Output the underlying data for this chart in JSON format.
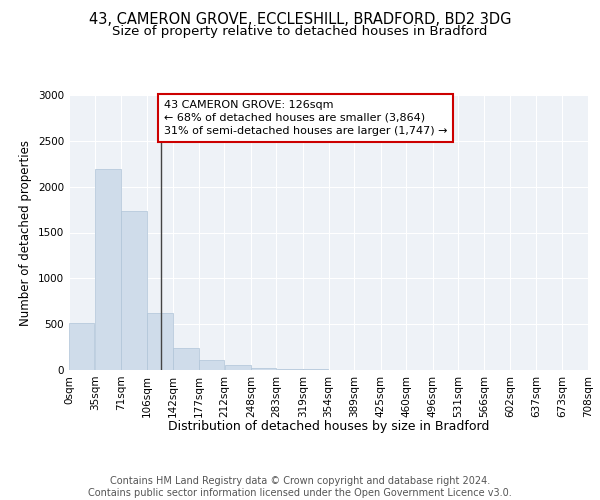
{
  "title1": "43, CAMERON GROVE, ECCLESHILL, BRADFORD, BD2 3DG",
  "title2": "Size of property relative to detached houses in Bradford",
  "xlabel": "Distribution of detached houses by size in Bradford",
  "ylabel": "Number of detached properties",
  "bin_edges": [
    0,
    35,
    71,
    106,
    142,
    177,
    212,
    248,
    283,
    319,
    354,
    389,
    425,
    460,
    496,
    531,
    566,
    602,
    637,
    673,
    708
  ],
  "bar_heights": [
    510,
    2190,
    1730,
    620,
    240,
    110,
    55,
    25,
    15,
    8,
    5,
    3,
    2,
    1,
    0,
    0,
    0,
    0,
    0,
    0
  ],
  "bar_color": "#cfdcea",
  "bar_edge_color": "#b0c4d8",
  "property_size": 126,
  "property_line_color": "#444444",
  "annotation_line1": "43 CAMERON GROVE: 126sqm",
  "annotation_line2": "← 68% of detached houses are smaller (3,864)",
  "annotation_line3": "31% of semi-detached houses are larger (1,747) →",
  "annotation_box_color": "#cc0000",
  "ylim": [
    0,
    3000
  ],
  "yticks": [
    0,
    500,
    1000,
    1500,
    2000,
    2500,
    3000
  ],
  "background_color": "#eef2f7",
  "grid_color": "#ffffff",
  "footer_text": "Contains HM Land Registry data © Crown copyright and database right 2024.\nContains public sector information licensed under the Open Government Licence v3.0.",
  "title1_fontsize": 10.5,
  "title2_fontsize": 9.5,
  "xlabel_fontsize": 9,
  "ylabel_fontsize": 8.5,
  "tick_fontsize": 7.5,
  "footer_fontsize": 7,
  "annotation_fontsize": 8
}
